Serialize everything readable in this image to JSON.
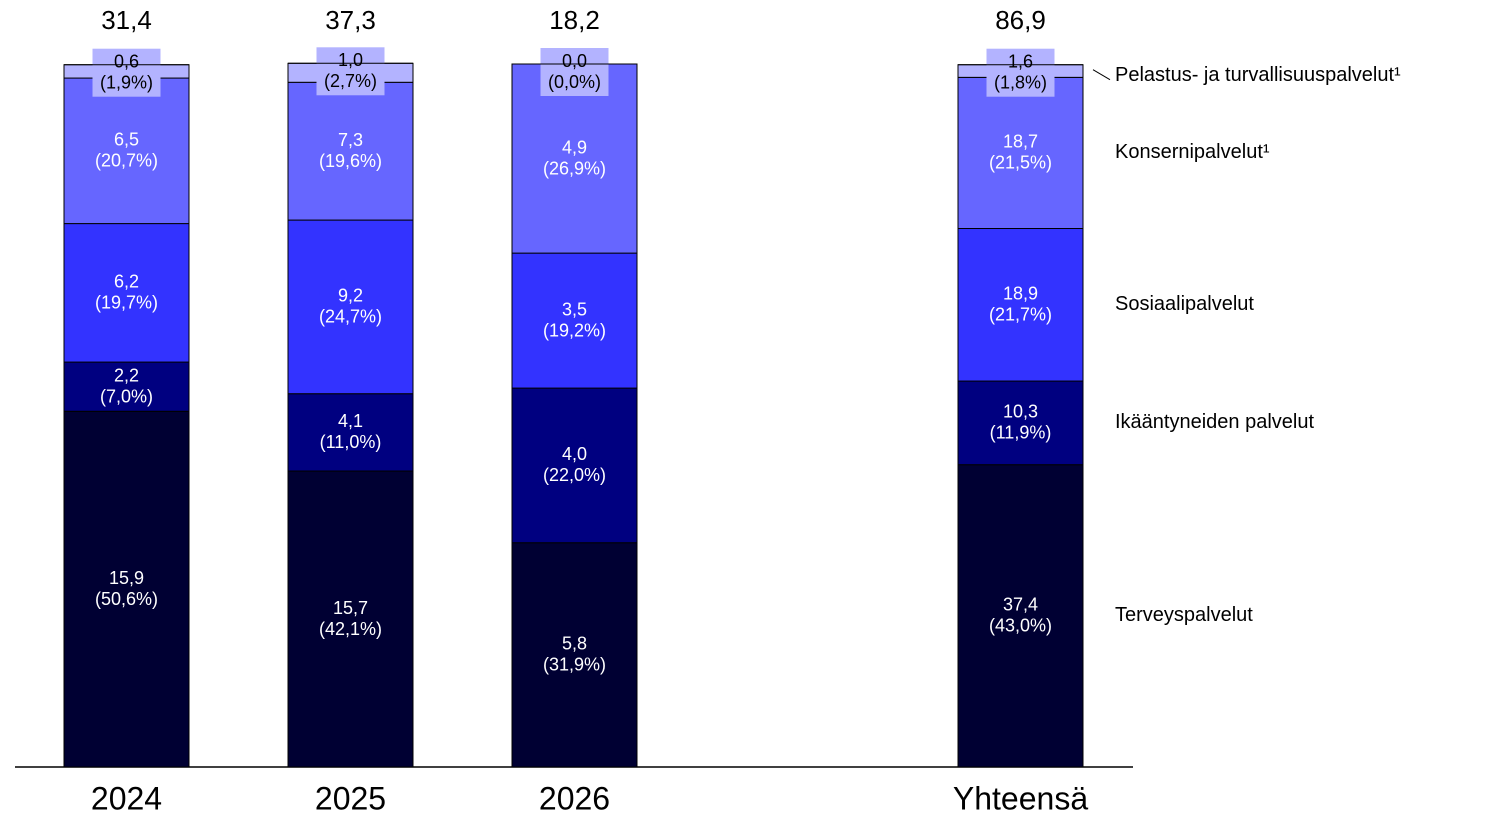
{
  "chart_data": {
    "type": "stacked_bar_100",
    "categories": [
      "2024",
      "2025",
      "2026",
      "Yhteensä"
    ],
    "totals": [
      31.4,
      37.3,
      18.2,
      86.9
    ],
    "total_labels": [
      "31,4",
      "37,3",
      "18,2",
      "86,9"
    ],
    "ylim": [
      0,
      100
    ],
    "series": [
      {
        "name": "Terveyspalvelut",
        "color": "#000033",
        "values": [
          15.9,
          15.7,
          5.8,
          37.4
        ],
        "value_labels": [
          "15,9",
          "15,7",
          "5,8",
          "37,4"
        ],
        "shares": [
          50.6,
          42.1,
          31.9,
          43.0
        ],
        "share_labels": [
          "(50,6%)",
          "(42,1%)",
          "(31,9%)",
          "(43,0%)"
        ]
      },
      {
        "name": "Ikääntyneiden palvelut",
        "color": "#000080",
        "values": [
          2.2,
          4.1,
          4.0,
          10.3
        ],
        "value_labels": [
          "2,2",
          "4,1",
          "4,0",
          "10,3"
        ],
        "shares": [
          7.0,
          11.0,
          22.0,
          11.9
        ],
        "share_labels": [
          "(7,0%)",
          "(11,0%)",
          "(22,0%)",
          "(11,9%)"
        ]
      },
      {
        "name": "Sosiaalipalvelut",
        "color": "#3333ff",
        "values": [
          6.2,
          9.2,
          3.5,
          18.9
        ],
        "value_labels": [
          "6,2",
          "9,2",
          "3,5",
          "18,9"
        ],
        "shares": [
          19.7,
          24.7,
          19.2,
          21.7
        ],
        "share_labels": [
          "(19,7%)",
          "(24,7%)",
          "(19,2%)",
          "(21,7%)"
        ]
      },
      {
        "name": "Konsernipalvelut¹",
        "color": "#6666ff",
        "values": [
          6.5,
          7.3,
          4.9,
          18.7
        ],
        "value_labels": [
          "6,5",
          "7,3",
          "4,9",
          "18,7"
        ],
        "shares": [
          20.7,
          19.6,
          26.9,
          21.5
        ],
        "share_labels": [
          "(20,7%)",
          "(19,6%)",
          "(26,9%)",
          "(21,5%)"
        ]
      },
      {
        "name": "Pelastus- ja turvallisuuspalvelut¹",
        "color": "#b3b3ff",
        "values": [
          0.6,
          1.0,
          0.0,
          1.6
        ],
        "value_labels": [
          "0,6",
          "1,0",
          "0,0",
          "1,6"
        ],
        "shares": [
          1.9,
          2.7,
          0.0,
          1.8
        ],
        "share_labels": [
          "(1,9%)",
          "(2,7%)",
          "(0,0%)",
          "(1,8%)"
        ]
      }
    ]
  }
}
